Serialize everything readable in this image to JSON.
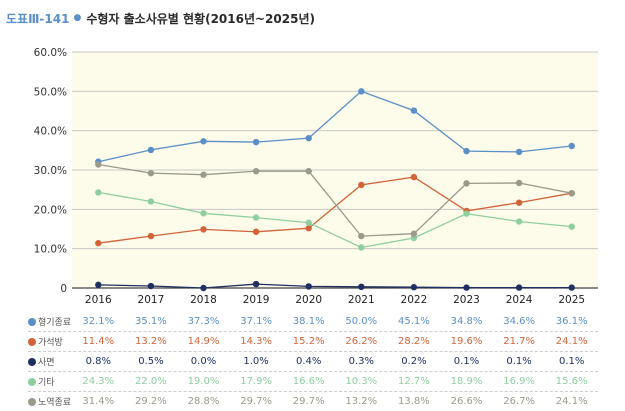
{
  "figure": {
    "code": "도표Ⅲ-141",
    "title": "수형자 출소사유별 현황(2016년~2025년)"
  },
  "chart_data": {
    "type": "line",
    "categories": [
      "2016",
      "2017",
      "2018",
      "2019",
      "2020",
      "2021",
      "2022",
      "2023",
      "2024",
      "2025"
    ],
    "y_ticks": [
      "0",
      "10.0%",
      "20.0%",
      "30.0%",
      "40.0%",
      "50.0%",
      "60.0%"
    ],
    "ylim": [
      0,
      60
    ],
    "grid": true,
    "background": "#fdfbe9",
    "series": [
      {
        "name": "형기종료",
        "color": "#5b8fc9",
        "values": [
          32.1,
          35.1,
          37.3,
          37.1,
          38.1,
          50.0,
          45.1,
          34.8,
          34.6,
          36.1
        ],
        "labels": [
          "32.1%",
          "35.1%",
          "37.3%",
          "37.1%",
          "38.1%",
          "50.0%",
          "45.1%",
          "34.8%",
          "34.6%",
          "36.1%"
        ]
      },
      {
        "name": "가석방",
        "color": "#d3643a",
        "values": [
          11.4,
          13.2,
          14.9,
          14.3,
          15.2,
          26.2,
          28.2,
          19.6,
          21.7,
          24.1
        ],
        "labels": [
          "11.4%",
          "13.2%",
          "14.9%",
          "14.3%",
          "15.2%",
          "26.2%",
          "28.2%",
          "19.6%",
          "21.7%",
          "24.1%"
        ]
      },
      {
        "name": "사면",
        "color": "#1f2f63",
        "values": [
          0.8,
          0.5,
          0.0,
          1.0,
          0.4,
          0.3,
          0.2,
          0.1,
          0.1,
          0.1
        ],
        "labels": [
          "0.8%",
          "0.5%",
          "0.0%",
          "1.0%",
          "0.4%",
          "0.3%",
          "0.2%",
          "0.1%",
          "0.1%",
          "0.1%"
        ]
      },
      {
        "name": "기타",
        "color": "#8fcf9f",
        "values": [
          24.3,
          22.0,
          19.0,
          17.9,
          16.6,
          10.3,
          12.7,
          18.9,
          16.9,
          15.6
        ],
        "labels": [
          "24.3%",
          "22.0%",
          "19.0%",
          "17.9%",
          "16.6%",
          "10.3%",
          "12.7%",
          "18.9%",
          "16.9%",
          "15.6%"
        ]
      },
      {
        "name": "노역종료",
        "color": "#9a9a8c",
        "values": [
          31.4,
          29.2,
          28.8,
          29.7,
          29.7,
          13.2,
          13.8,
          26.6,
          26.7,
          24.1
        ],
        "labels": [
          "31.4%",
          "29.2%",
          "28.8%",
          "29.7%",
          "29.7%",
          "13.2%",
          "13.8%",
          "26.6%",
          "26.7%",
          "24.1%"
        ]
      }
    ]
  }
}
